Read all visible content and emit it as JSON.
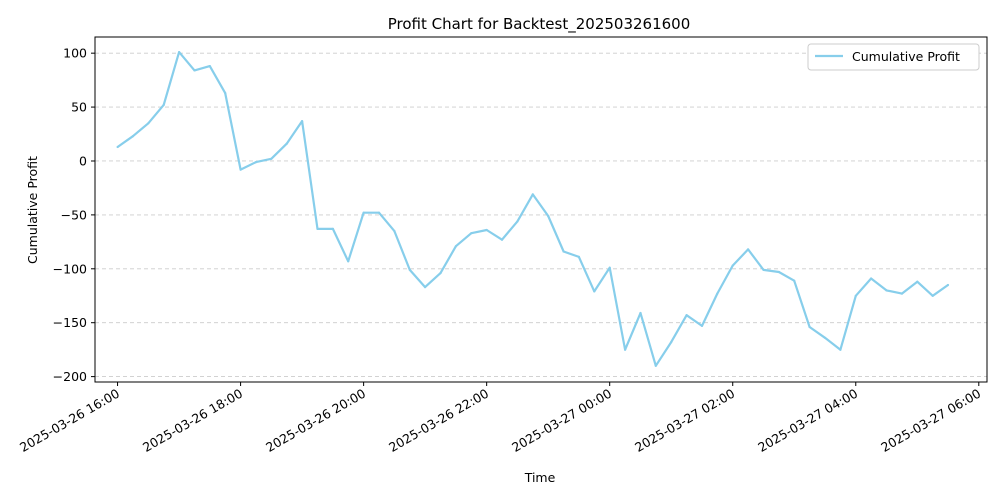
{
  "chart_data": {
    "type": "line",
    "title": "Profit Chart for Backtest_202503261600",
    "xlabel": "Time",
    "ylabel": "Cumulative Profit",
    "ylim": [
      -205,
      115
    ],
    "xlim": [
      "2025-03-26 15:38",
      "2025-03-27 06:08"
    ],
    "yticks": [
      -200,
      -150,
      -100,
      -50,
      0,
      50,
      100
    ],
    "xticks": [
      {
        "t": "2025-03-26 16:00",
        "label": "2025-03-26 16:00"
      },
      {
        "t": "2025-03-26 18:00",
        "label": "2025-03-26 18:00"
      },
      {
        "t": "2025-03-26 20:00",
        "label": "2025-03-26 20:00"
      },
      {
        "t": "2025-03-26 22:00",
        "label": "2025-03-26 22:00"
      },
      {
        "t": "2025-03-27 00:00",
        "label": "2025-03-27 00:00"
      },
      {
        "t": "2025-03-27 02:00",
        "label": "2025-03-27 02:00"
      },
      {
        "t": "2025-03-27 04:00",
        "label": "2025-03-27 04:00"
      },
      {
        "t": "2025-03-27 06:00",
        "label": "2025-03-27 06:00"
      }
    ],
    "grid": "y-dashed",
    "legend_position": "top-right",
    "series": [
      {
        "name": "Cumulative Profit",
        "color": "#87ceeb",
        "x": [
          "2025-03-26 16:00",
          "2025-03-26 16:15",
          "2025-03-26 16:30",
          "2025-03-26 16:45",
          "2025-03-26 17:00",
          "2025-03-26 17:15",
          "2025-03-26 17:30",
          "2025-03-26 17:45",
          "2025-03-26 18:00",
          "2025-03-26 18:15",
          "2025-03-26 18:30",
          "2025-03-26 18:45",
          "2025-03-26 19:00",
          "2025-03-26 19:15",
          "2025-03-26 19:30",
          "2025-03-26 19:45",
          "2025-03-26 20:00",
          "2025-03-26 20:15",
          "2025-03-26 20:30",
          "2025-03-26 20:45",
          "2025-03-26 21:00",
          "2025-03-26 21:15",
          "2025-03-26 21:30",
          "2025-03-26 21:45",
          "2025-03-26 22:00",
          "2025-03-26 22:15",
          "2025-03-26 22:30",
          "2025-03-26 22:45",
          "2025-03-26 23:00",
          "2025-03-26 23:15",
          "2025-03-26 23:30",
          "2025-03-26 23:45",
          "2025-03-27 00:00",
          "2025-03-27 00:15",
          "2025-03-27 00:30",
          "2025-03-27 00:45",
          "2025-03-27 01:00",
          "2025-03-27 01:15",
          "2025-03-27 01:30",
          "2025-03-27 01:45",
          "2025-03-27 02:00",
          "2025-03-27 02:15",
          "2025-03-27 02:30",
          "2025-03-27 02:45",
          "2025-03-27 03:00",
          "2025-03-27 03:15",
          "2025-03-27 03:30",
          "2025-03-27 03:45",
          "2025-03-27 04:00",
          "2025-03-27 04:15",
          "2025-03-27 04:30",
          "2025-03-27 04:45",
          "2025-03-27 05:00",
          "2025-03-27 05:15",
          "2025-03-27 05:30"
        ],
        "y": [
          13,
          23,
          35,
          52,
          101,
          84,
          88,
          63,
          -8,
          -1,
          2,
          16,
          37,
          -63,
          -63,
          -93,
          -48,
          -48,
          -65,
          -101,
          -117,
          -104,
          -79,
          -67,
          -64,
          -73,
          -56,
          -31,
          -51,
          -84,
          -89,
          -121,
          -99,
          -175,
          -141,
          -190,
          -168,
          -143,
          -153,
          -123,
          -97,
          -82,
          -101,
          -103,
          -111,
          -154,
          -164,
          -175,
          -125,
          -109,
          -120,
          -123,
          -112,
          -125,
          -115
        ]
      }
    ]
  }
}
